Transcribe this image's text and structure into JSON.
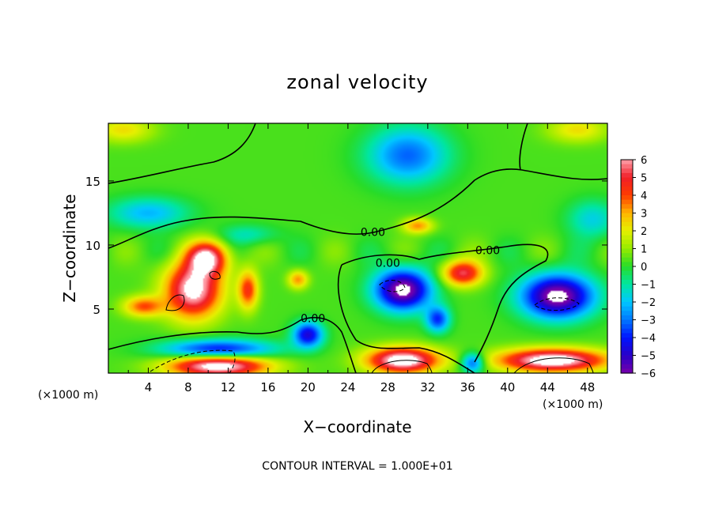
{
  "chart_data": {
    "type": "heatmap",
    "title": "zonal velocity",
    "xlabel": "X−coordinate",
    "ylabel": "Z−coordinate",
    "x_unit_label": "(×1000 m)",
    "z_unit_label": "(×1000 m)",
    "xlim": [
      0,
      50
    ],
    "ylim": [
      0,
      19.5
    ],
    "x_ticks": [
      4,
      8,
      12,
      16,
      20,
      24,
      28,
      32,
      36,
      40,
      44,
      48
    ],
    "x_tick_labels": [
      "4",
      "8",
      "12",
      "16",
      "20",
      "24",
      "28",
      "32",
      "36",
      "40",
      "44",
      "48"
    ],
    "y_ticks": [
      5,
      10,
      15
    ],
    "y_tick_labels": [
      "5",
      "10",
      "15"
    ],
    "colorbar": {
      "range": [
        -6,
        6
      ],
      "ticks": [
        6,
        5,
        4,
        3,
        2,
        1,
        0,
        -1,
        -2,
        -3,
        -4,
        -5,
        -6
      ],
      "tick_labels": [
        "6",
        "5",
        "4",
        "3",
        "2",
        "1",
        "0",
        "−1",
        "−2",
        "−3",
        "−4",
        "−5",
        "−6"
      ]
    },
    "contour_labels": [
      {
        "text": "0.00",
        "x": 26.5,
        "z": 11.0
      },
      {
        "text": "0.00",
        "x": 28.0,
        "z": 8.6
      },
      {
        "text": "0.00",
        "x": 38.0,
        "z": 9.6
      },
      {
        "text": "0.00",
        "x": 20.5,
        "z": 4.3
      }
    ],
    "features": [
      {
        "value": 6.5,
        "x": 8.5,
        "z": 6.5,
        "sx": 2.8,
        "sz": 2.2
      },
      {
        "value": 5.5,
        "x": 10.0,
        "z": 9.0,
        "sx": 2.0,
        "sz": 1.3
      },
      {
        "value": 3.5,
        "x": 3.5,
        "z": 5.2,
        "sx": 2.0,
        "sz": 0.8
      },
      {
        "value": 4.0,
        "x": 14.0,
        "z": 6.5,
        "sx": 1.0,
        "sz": 1.5
      },
      {
        "value": 3.0,
        "x": 19.0,
        "z": 7.3,
        "sx": 1.0,
        "sz": 0.7
      },
      {
        "value": -5.0,
        "x": 20.0,
        "z": 3.0,
        "sx": 1.5,
        "sz": 1.0
      },
      {
        "value": 5.0,
        "x": 35.5,
        "z": 7.8,
        "sx": 2.0,
        "sz": 1.0
      },
      {
        "value": 3.0,
        "x": 31.0,
        "z": 11.5,
        "sx": 1.5,
        "sz": 0.6
      },
      {
        "value": -7.0,
        "x": 29.5,
        "z": 6.5,
        "sx": 2.8,
        "sz": 1.6
      },
      {
        "value": -4.0,
        "x": 33.0,
        "z": 4.2,
        "sx": 1.2,
        "sz": 1.0
      },
      {
        "value": -7.0,
        "x": 45.0,
        "z": 6.0,
        "sx": 3.6,
        "sz": 1.7
      },
      {
        "value": -5.0,
        "x": 11.0,
        "z": 1.8,
        "sx": 5.5,
        "sz": 0.8
      },
      {
        "value": 7.0,
        "x": 11.0,
        "z": 0.6,
        "sx": 5.0,
        "sz": 0.9
      },
      {
        "value": 7.0,
        "x": 29.5,
        "z": 1.0,
        "sx": 3.6,
        "sz": 1.0
      },
      {
        "value": 7.0,
        "x": 44.5,
        "z": 1.0,
        "sx": 5.5,
        "sz": 0.9
      },
      {
        "value": -4.0,
        "x": 36.5,
        "z": 0.8,
        "sx": 1.2,
        "sz": 0.8
      },
      {
        "value": -3.5,
        "x": 30.0,
        "z": 17.0,
        "sx": 4.0,
        "sz": 2.2
      },
      {
        "value": -2.5,
        "x": 4.0,
        "z": 12.5,
        "sx": 4.0,
        "sz": 1.2
      },
      {
        "value": -2.0,
        "x": 48.5,
        "z": 12.0,
        "sx": 2.5,
        "sz": 1.5
      },
      {
        "value": 2.0,
        "x": 1.5,
        "z": 19.0,
        "sx": 3.0,
        "sz": 1.0
      },
      {
        "value": 2.0,
        "x": 47.0,
        "z": 19.0,
        "sx": 3.0,
        "sz": 1.0
      },
      {
        "value": -1.5,
        "x": 14.0,
        "z": 10.8,
        "sx": 3.0,
        "sz": 0.8
      }
    ],
    "footer": "CONTOUR INTERVAL = 1.000E+01"
  }
}
